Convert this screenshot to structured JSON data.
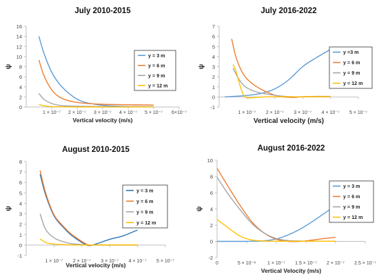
{
  "chart_data": [
    {
      "type": "line",
      "title": "July 2010-2015",
      "xlabel": "Vertical velocity (m/s)",
      "ylabel": "ψ",
      "xlim": [
        0,
        6e-07
      ],
      "ylim": [
        0,
        16
      ],
      "xticks": [
        1e-07,
        2e-07,
        3e-07,
        4e-07,
        5e-07,
        6e-07
      ],
      "xtick_labels": [
        "1 × 10⁻⁷",
        "2 × 10⁻⁷",
        "3 × 10⁻⁷",
        "4 × 10⁻⁷",
        "5 × 10⁻⁷",
        "6×10⁻⁷"
      ],
      "yticks": [
        0,
        2,
        4,
        6,
        8,
        10,
        12,
        14,
        16
      ],
      "ytick_labels": [
        "0",
        "2",
        "4",
        "6",
        "8",
        "10",
        "12",
        "14",
        "16"
      ],
      "legend_position": "right",
      "series": [
        {
          "name": "y = 3 m",
          "color": "#5b9bd5",
          "x": [
            5e-08,
            7e-08,
            1e-07,
            1.3e-07,
            1.7e-07,
            2.2e-07,
            3e-07,
            4e-07,
            5e-07
          ],
          "y": [
            14,
            10.6,
            6.9,
            4.6,
            2.6,
            1.1,
            0.35,
            0.1,
            0.05
          ]
        },
        {
          "name": "y = 6 m",
          "color": "#ed7d31",
          "x": [
            5e-08,
            7e-08,
            1e-07,
            1.3e-07,
            1.7e-07,
            2.2e-07,
            3e-07,
            4e-07,
            5e-07
          ],
          "y": [
            9.3,
            6.2,
            3.4,
            2.0,
            1.2,
            0.8,
            0.55,
            0.45,
            0.4
          ]
        },
        {
          "name": "y = 9 m",
          "color": "#a5a5a5",
          "x": [
            5e-08,
            7e-08,
            1e-07,
            1.3e-07,
            1.7e-07,
            2.2e-07,
            3e-07,
            4e-07,
            5e-07
          ],
          "y": [
            2.7,
            1.5,
            0.7,
            0.35,
            0.2,
            0.15,
            0.1,
            0.08,
            0.05
          ]
        },
        {
          "name": "y = 12 m",
          "color": "#ffc000",
          "x": [
            5e-08,
            7e-08,
            1e-07,
            1.3e-07,
            1.7e-07,
            2.2e-07,
            3e-07,
            4e-07,
            5e-07
          ],
          "y": [
            0.5,
            0.25,
            0.1,
            0.05,
            0.03,
            0.02,
            0.02,
            0.01,
            0.01
          ]
        }
      ]
    },
    {
      "type": "line",
      "title": "July 2016-2022",
      "xlabel": "Vertical velocity (m/s)",
      "ylabel": "ψ",
      "xlim": [
        0,
        5e-07
      ],
      "ylim": [
        -1,
        7
      ],
      "xticks": [
        1e-07,
        2e-07,
        3e-07,
        4e-07,
        5e-07
      ],
      "xtick_labels": [
        "1 × 10⁻⁷",
        "2 × 10⁻⁷",
        "3 × 10⁻⁷",
        "4 × 10⁻⁷",
        "5 × 10⁻⁷"
      ],
      "yticks": [
        -1,
        0,
        1,
        2,
        3,
        4,
        5,
        6,
        7
      ],
      "ytick_labels": [
        "-1",
        "0",
        "1",
        "2",
        "3",
        "4",
        "5",
        "6",
        "7"
      ],
      "legend_position": "right",
      "series": [
        {
          "name": "y =3 m",
          "color": "#5b9bd5",
          "x": [
            2e-08,
            5e-08,
            1e-07,
            1.5e-07,
            2e-07,
            2.5e-07,
            3e-07,
            3.5e-07,
            4e-07
          ],
          "y": [
            0,
            0.05,
            0.15,
            0.35,
            0.8,
            1.7,
            3.0,
            3.9,
            4.7
          ]
        },
        {
          "name": "y = 6 m",
          "color": "#ed7d31",
          "x": [
            4.5e-08,
            6e-08,
            8e-08,
            1e-07,
            1.3e-07,
            1.7e-07,
            2.1e-07,
            2.6e-07,
            3e-07,
            3.5e-07,
            4e-07
          ],
          "y": [
            5.75,
            4.0,
            2.6,
            1.8,
            1.1,
            0.5,
            0.1,
            -0.05,
            0.02,
            0.05,
            0.05
          ]
        },
        {
          "name": "y = 9 m",
          "color": "#a5a5a5",
          "x": [
            5e-08,
            7e-08,
            9e-08,
            1.1e-07,
            1.4e-07,
            1.8e-07,
            2.2e-07,
            2.6e-07,
            3e-07,
            3.5e-07,
            4e-07
          ],
          "y": [
            2.85,
            1.8,
            1.1,
            0.75,
            0.45,
            0.25,
            0.1,
            0.02,
            0.02,
            0.03,
            0.03
          ]
        },
        {
          "name": "y = 12 m",
          "color": "#ffc000",
          "x": [
            5e-08,
            6e-08,
            7e-08,
            8e-08,
            9e-08,
            1.05e-07,
            1.3e-07,
            1.6e-07,
            2e-07,
            3e-07,
            4e-07
          ],
          "y": [
            3.2,
            2.6,
            1.6,
            0.7,
            0.1,
            -0.1,
            -0.05,
            0.0,
            0.02,
            0.02,
            0.02
          ]
        }
      ]
    },
    {
      "type": "line",
      "title": "August 2010-2015",
      "xlabel": "Vertical velocity (m/s)",
      "ylabel": "ψ",
      "xlim": [
        0,
        5e-07
      ],
      "ylim": [
        -1,
        8
      ],
      "xticks": [
        1e-07,
        2e-07,
        3e-07,
        4e-07,
        5e-07
      ],
      "xtick_labels": [
        "1 × 10⁻⁷",
        "2 × 10⁻⁷",
        "3 × 10⁻⁷",
        "4 × 10⁻⁷",
        "5 × 10⁻⁷"
      ],
      "yticks": [
        -1,
        0,
        1,
        2,
        3,
        4,
        5,
        6,
        7,
        8
      ],
      "ytick_labels": [
        "-1",
        "0",
        "1",
        "2",
        "3",
        "4",
        "5",
        "6",
        "7",
        "8"
      ],
      "legend_position": "right",
      "series": [
        {
          "name": "y = 3 m",
          "color": "#2e75b6",
          "x": [
            5e-08,
            7e-08,
            1e-07,
            1.3e-07,
            1.6e-07,
            2e-07,
            2.25e-07,
            2.5e-07,
            3e-07,
            3.5e-07,
            4e-07
          ],
          "y": [
            6.8,
            4.8,
            2.8,
            1.8,
            1.0,
            0.25,
            -0.05,
            0.1,
            0.55,
            0.9,
            1.45
          ]
        },
        {
          "name": "y = 6 m",
          "color": "#ed7d31",
          "x": [
            5e-08,
            7e-08,
            1e-07,
            1.3e-07,
            1.6e-07,
            2e-07,
            2.25e-07,
            2.5e-07,
            3e-07,
            3.5e-07,
            4e-07
          ],
          "y": [
            7.15,
            5.0,
            2.9,
            1.9,
            1.1,
            0.35,
            0.0,
            0.02,
            0.02,
            0.02,
            0.02
          ]
        },
        {
          "name": "y = 9 m",
          "color": "#a5a5a5",
          "x": [
            5e-08,
            7e-08,
            1e-07,
            1.3e-07,
            1.6e-07,
            2e-07,
            2.25e-07,
            2.5e-07,
            3e-07,
            3.5e-07,
            4e-07
          ],
          "y": [
            3.0,
            1.5,
            0.7,
            0.35,
            0.15,
            0.05,
            0.0,
            0.0,
            0.0,
            0.0,
            0.0
          ]
        },
        {
          "name": "y = 12 m",
          "color": "#ffc000",
          "x": [
            5e-08,
            7e-08,
            1e-07,
            1.3e-07,
            1.6e-07,
            2e-07,
            2.5e-07,
            3e-07,
            3.5e-07,
            4e-07
          ],
          "y": [
            0.6,
            0.25,
            0.1,
            0.05,
            0.02,
            0.01,
            0.01,
            0.01,
            0.01,
            0.01
          ]
        }
      ]
    },
    {
      "type": "line",
      "title": "August 2016-2022",
      "xlabel": "Vertical Velocity (m/s)",
      "ylabel": "ψ",
      "xlim": [
        0,
        2.5e-07
      ],
      "ylim": [
        -2,
        10
      ],
      "xticks": [
        0,
        5e-08,
        1e-07,
        1.5e-07,
        2e-07,
        2.5e-07
      ],
      "xtick_labels": [
        "0",
        "5 × 10⁻⁸",
        "1 × 10⁻⁷",
        "1.5 × 10⁻⁷",
        "2 × 10⁻⁷",
        "2.5 × 10⁻⁷"
      ],
      "yticks": [
        -2,
        0,
        2,
        4,
        6,
        8,
        10
      ],
      "ytick_labels": [
        "-2",
        "0",
        "2",
        "4",
        "6",
        "8",
        "10"
      ],
      "legend_position": "right",
      "series": [
        {
          "name": "y = 3 m",
          "color": "#5b9bd5",
          "x": [
            0,
            2e-08,
            4e-08,
            6e-08,
            8e-08,
            1e-07,
            1.2e-07,
            1.4e-07,
            1.6e-07,
            1.8e-07,
            2e-07
          ],
          "y": [
            0,
            0,
            0,
            0.02,
            0.08,
            0.3,
            0.8,
            1.5,
            2.4,
            3.4,
            4.4
          ]
        },
        {
          "name": "y = 6 m",
          "color": "#ed7d31",
          "x": [
            0,
            2e-08,
            4e-08,
            6e-08,
            8e-08,
            1e-07,
            1.2e-07,
            1.4e-07,
            1.6e-07,
            1.8e-07,
            2e-07
          ],
          "y": [
            9.0,
            6.6,
            4.3,
            2.3,
            1.0,
            0.25,
            0.0,
            0.0,
            0.15,
            0.35,
            0.5
          ]
        },
        {
          "name": "y = 9 m",
          "color": "#a5a5a5",
          "x": [
            0,
            2e-08,
            4e-08,
            6e-08,
            8e-08,
            1e-07,
            1.2e-07,
            1.4e-07,
            1.6e-07,
            1.8e-07,
            2e-07
          ],
          "y": [
            7.9,
            5.7,
            3.8,
            2.1,
            1.0,
            0.35,
            0.1,
            0.05,
            0.02,
            0.02,
            0.02
          ]
        },
        {
          "name": "y = 12 m",
          "color": "#ffc000",
          "x": [
            0,
            2e-08,
            4e-08,
            6e-08,
            8e-08,
            1e-07,
            1.2e-07,
            1.4e-07,
            1.6e-07,
            1.8e-07,
            2e-07
          ],
          "y": [
            2.7,
            1.6,
            0.6,
            0.15,
            0.05,
            0.02,
            0.02,
            0.02,
            0.02,
            0.02,
            0.02
          ]
        }
      ]
    }
  ]
}
